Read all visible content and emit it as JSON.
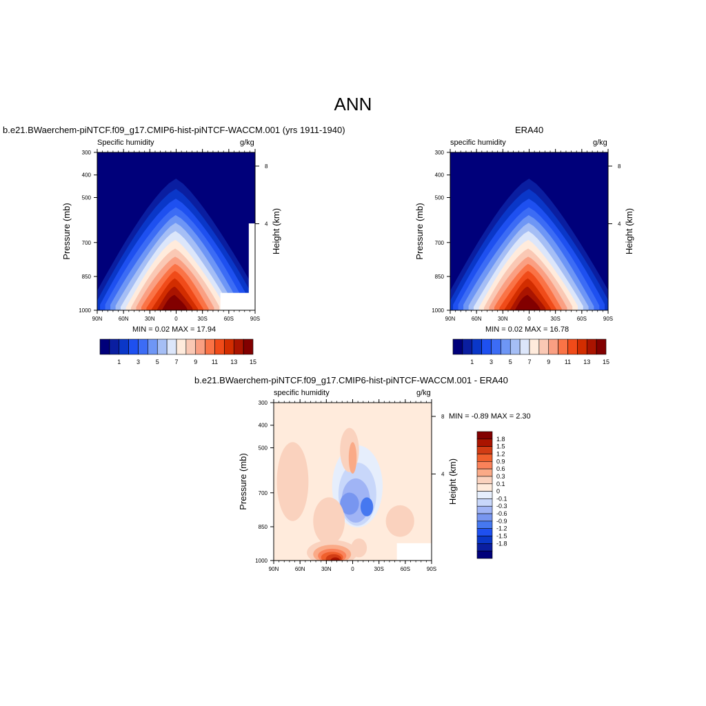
{
  "figure": {
    "title": "ANN"
  },
  "colors": {
    "abs_scale": [
      "#00007a",
      "#0a1ea0",
      "#0a37c8",
      "#1e50f0",
      "#3c6cf5",
      "#6e96f5",
      "#a5bef5",
      "#dce6fa",
      "#ffebdc",
      "#fac8b4",
      "#fa9f82",
      "#fa7346",
      "#f04b19",
      "#d22d00",
      "#aa1400",
      "#820000"
    ],
    "diff_scale": [
      "#00007a",
      "#0a1ea0",
      "#0a37c8",
      "#1e50f0",
      "#4678f0",
      "#7896f0",
      "#a0b4f5",
      "#c8d7fa",
      "#e6eefc",
      "#ffebdc",
      "#fad2be",
      "#faaa87",
      "#fa825a",
      "#f0602d",
      "#d23c14",
      "#aa1400",
      "#820000"
    ]
  },
  "chart_data": [
    {
      "type": "heatmap",
      "title": "b.e21.BWaerchem-piNTCF.f09_g17.CMIP6-hist-piNTCF-WACCM.001 (yrs 1911-1940)",
      "left_label": "Specific humidity",
      "right_label": "g/kg",
      "xlabel": "",
      "ylabel": "Pressure (mb)",
      "y2label": "Height (km)",
      "x_ticks": [
        "90N",
        "60N",
        "30N",
        "0",
        "30S",
        "60S",
        "90S"
      ],
      "y_ticks": [
        "300",
        "400",
        "500",
        "700",
        "850",
        "1000"
      ],
      "y2_ticks": [
        "8",
        "4"
      ],
      "stats": "MIN =   0.02  MAX =  17.94",
      "min": 0.02,
      "max": 17.94,
      "colorbar_labels": [
        "1",
        "3",
        "5",
        "7",
        "9",
        "11",
        "13",
        "15"
      ],
      "colorbar_orientation": "horizontal"
    },
    {
      "type": "heatmap",
      "title": "ERA40",
      "left_label": "specific humidity",
      "right_label": "g/kg",
      "xlabel": "",
      "ylabel": "Pressure (mb)",
      "y2label": "Height (km)",
      "x_ticks": [
        "90N",
        "60N",
        "30N",
        "0",
        "30S",
        "60S",
        "90S"
      ],
      "y_ticks": [
        "300",
        "400",
        "500",
        "700",
        "850",
        "1000"
      ],
      "y2_ticks": [
        "8",
        "4"
      ],
      "stats": "MIN =   0.02  MAX =  16.78",
      "min": 0.02,
      "max": 16.78,
      "colorbar_labels": [
        "1",
        "3",
        "5",
        "7",
        "9",
        "11",
        "13",
        "15"
      ],
      "colorbar_orientation": "horizontal"
    },
    {
      "type": "heatmap",
      "title": "b.e21.BWaerchem-piNTCF.f09_g17.CMIP6-hist-piNTCF-WACCM.001 - ERA40",
      "left_label": "specific humidity",
      "right_label": "g/kg",
      "xlabel": "",
      "ylabel": "Pressure (mb)",
      "y2label": "Height (km)",
      "x_ticks": [
        "90N",
        "60N",
        "30N",
        "0",
        "30S",
        "60S",
        "90S"
      ],
      "y_ticks": [
        "300",
        "400",
        "500",
        "700",
        "850",
        "1000"
      ],
      "y2_ticks": [
        "8",
        "4"
      ],
      "stats": "MIN =  -0.89  MAX =   2.30",
      "min": -0.89,
      "max": 2.3,
      "colorbar_labels": [
        "1.8",
        "1.5",
        "1.2",
        "0.9",
        "0.6",
        "0.3",
        "0.1",
        "0",
        "-0.1",
        "-0.3",
        "-0.6",
        "-0.9",
        "-1.2",
        "-1.5",
        "-1.8"
      ],
      "colorbar_orientation": "vertical"
    }
  ]
}
